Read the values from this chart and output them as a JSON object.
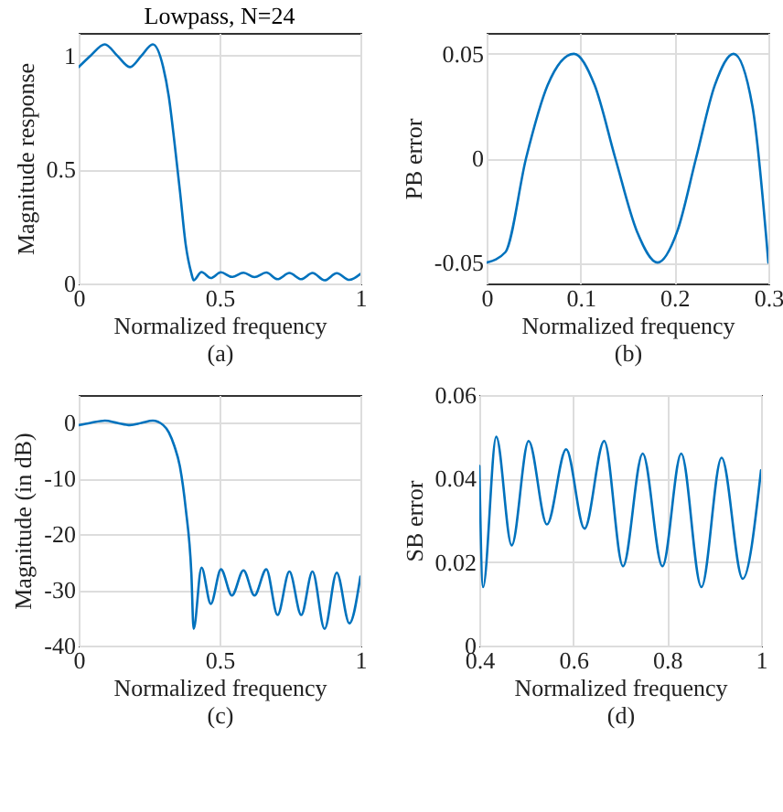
{
  "chart_data": [
    {
      "type": "line",
      "title": "Lowpass, N=24",
      "xlabel": "Normalized frequency",
      "ylabel": "Magnitude response",
      "annotations": [
        "(a)"
      ],
      "xlim": [
        0,
        1
      ],
      "ylim": [
        0,
        1.1
      ],
      "xticks": [
        0,
        0.5,
        1
      ],
      "yticks": [
        0,
        0.5,
        1
      ],
      "grid": true,
      "x": [
        0,
        0.042,
        0.093,
        0.137,
        0.182,
        0.223,
        0.263,
        0.3,
        0.32,
        0.34,
        0.36,
        0.38,
        0.4,
        0.408,
        0.436,
        0.469,
        0.505,
        0.544,
        0.585,
        0.624,
        0.666,
        0.706,
        0.748,
        0.79,
        0.83,
        0.873,
        0.916,
        0.961,
        1
      ],
      "series": [
        {
          "color": "#0072bd",
          "values": [
            0.95,
            1,
            1.05,
            1,
            0.95,
            1,
            1.05,
            0.95,
            0.82,
            0.62,
            0.4,
            0.17,
            0.045,
            0.014,
            0.05,
            0.024,
            0.049,
            0.029,
            0.047,
            0.028,
            0.048,
            0.019,
            0.046,
            0.019,
            0.046,
            0.014,
            0.045,
            0.016,
            0.042
          ]
        }
      ]
    },
    {
      "type": "line",
      "xlabel": "Normalized frequency",
      "ylabel": "PB error",
      "annotations": [
        "(b)"
      ],
      "xlim": [
        0,
        0.3
      ],
      "ylim": [
        -0.06,
        0.06
      ],
      "xticks": [
        0,
        0.1,
        0.2,
        0.3
      ],
      "yticks": [
        -0.05,
        0,
        0.05
      ],
      "grid": true,
      "x": [
        0,
        0.02,
        0.042,
        0.065,
        0.093,
        0.115,
        0.137,
        0.16,
        0.182,
        0.203,
        0.223,
        0.243,
        0.263,
        0.283,
        0.3
      ],
      "series": [
        {
          "color": "#0072bd",
          "values": [
            -0.05,
            -0.045,
            0,
            0.035,
            0.05,
            0.035,
            0,
            -0.035,
            -0.05,
            -0.035,
            0,
            0.035,
            0.05,
            0.025,
            -0.05
          ]
        }
      ]
    },
    {
      "type": "line",
      "xlabel": "Normalized frequency",
      "ylabel": "Magnitude (in dB)",
      "annotations": [
        "(c)"
      ],
      "xlim": [
        0,
        1
      ],
      "ylim": [
        -40,
        5
      ],
      "xticks": [
        0,
        0.5,
        1
      ],
      "yticks": [
        -40,
        -30,
        -20,
        -10,
        0
      ],
      "grid": true,
      "x": [
        0,
        0.042,
        0.093,
        0.137,
        0.182,
        0.223,
        0.263,
        0.3,
        0.32,
        0.34,
        0.36,
        0.38,
        0.4,
        0.408,
        0.436,
        0.469,
        0.505,
        0.544,
        0.585,
        0.624,
        0.666,
        0.706,
        0.748,
        0.79,
        0.83,
        0.873,
        0.916,
        0.961,
        1
      ],
      "series": [
        {
          "color": "#0072bd",
          "values": [
            -0.4,
            0,
            0.4,
            0,
            -0.4,
            0,
            0.4,
            -0.4,
            -1.7,
            -4.2,
            -8,
            -15.4,
            -27,
            -37,
            -26,
            -32.5,
            -26.3,
            -31,
            -26.5,
            -31,
            -26.3,
            -34.5,
            -26.7,
            -34.5,
            -26.7,
            -37,
            -26.9,
            -36,
            -27.6
          ]
        }
      ]
    },
    {
      "type": "line",
      "xlabel": "Normalized frequency",
      "ylabel": "SB error",
      "annotations": [
        "(d)"
      ],
      "xlim": [
        0.4,
        1
      ],
      "ylim": [
        0,
        0.06
      ],
      "xticks": [
        0.4,
        0.6,
        0.8,
        1
      ],
      "yticks": [
        0,
        0.02,
        0.04,
        0.06
      ],
      "grid": true,
      "x": [
        0.4,
        0.408,
        0.436,
        0.469,
        0.505,
        0.544,
        0.585,
        0.624,
        0.666,
        0.706,
        0.748,
        0.79,
        0.83,
        0.873,
        0.916,
        0.961,
        1
      ],
      "series": [
        {
          "color": "#0072bd",
          "values": [
            0.043,
            0.014,
            0.05,
            0.024,
            0.049,
            0.029,
            0.047,
            0.028,
            0.049,
            0.019,
            0.046,
            0.019,
            0.046,
            0.014,
            0.045,
            0.016,
            0.042
          ]
        }
      ]
    }
  ]
}
